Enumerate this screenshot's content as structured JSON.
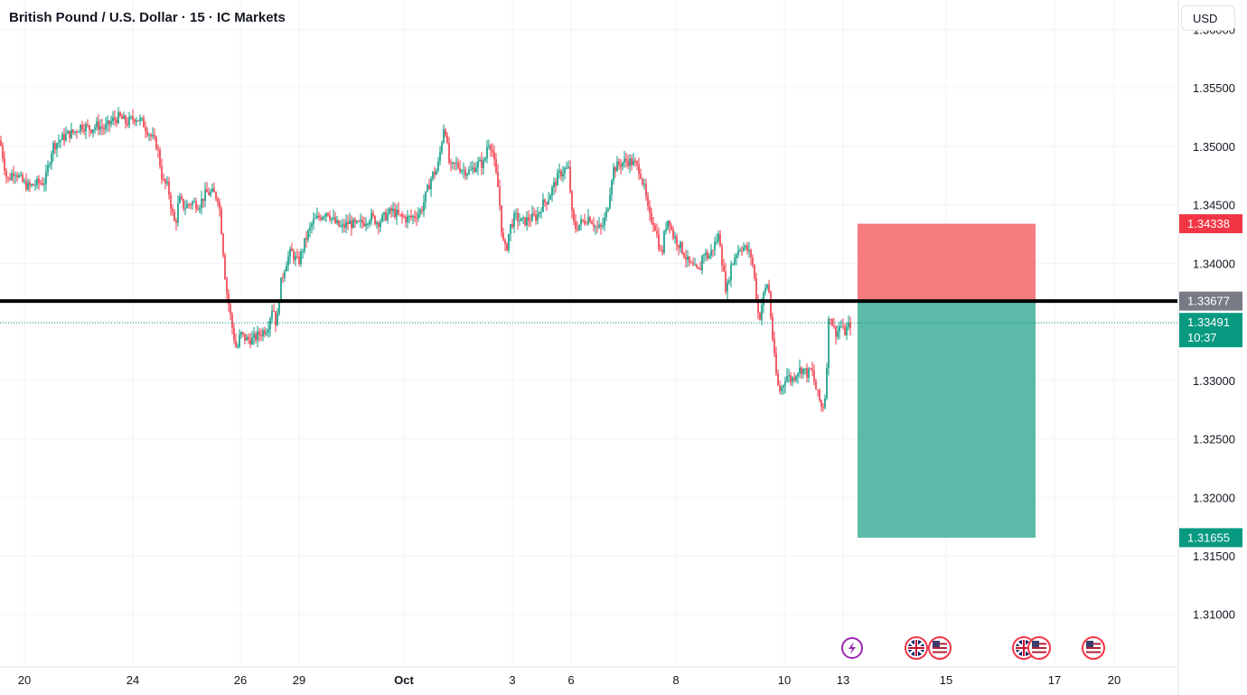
{
  "header": {
    "title": "British Pound / U.S. Dollar · 15 · IC Markets",
    "currency": "USD"
  },
  "chart_data": {
    "type": "candlestick",
    "y_ticks": [
      "1.36000",
      "1.35500",
      "1.35000",
      "1.34500",
      "1.34000",
      "1.33500",
      "1.33000",
      "1.32500",
      "1.32000",
      "1.31500",
      "1.31000"
    ],
    "y_tick_values": [
      1.36,
      1.355,
      1.35,
      1.345,
      1.34,
      1.335,
      1.33,
      1.325,
      1.32,
      1.315,
      1.31
    ],
    "ylim": [
      1.3055,
      1.3625
    ],
    "x_ticks": [
      "20",
      "24",
      "26",
      "29",
      "Oct",
      "3",
      "6",
      "8",
      "10",
      "13",
      "15",
      "17",
      "20"
    ],
    "price_path": [
      [
        0,
        1.3505
      ],
      [
        8,
        1.347
      ],
      [
        16,
        1.348
      ],
      [
        24,
        1.347
      ],
      [
        32,
        1.3465
      ],
      [
        40,
        1.3468
      ],
      [
        50,
        1.347
      ],
      [
        58,
        1.35
      ],
      [
        66,
        1.3505
      ],
      [
        74,
        1.351
      ],
      [
        82,
        1.3512
      ],
      [
        90,
        1.3518
      ],
      [
        100,
        1.3515
      ],
      [
        108,
        1.3518
      ],
      [
        116,
        1.3515
      ],
      [
        124,
        1.3522
      ],
      [
        132,
        1.3525
      ],
      [
        140,
        1.352
      ],
      [
        150,
        1.3525
      ],
      [
        158,
        1.352
      ],
      [
        166,
        1.351
      ],
      [
        174,
        1.35
      ],
      [
        180,
        1.347
      ],
      [
        186,
        1.3465
      ],
      [
        190,
        1.3445
      ],
      [
        194,
        1.3432
      ],
      [
        198,
        1.3455
      ],
      [
        204,
        1.3448
      ],
      [
        212,
        1.3452
      ],
      [
        220,
        1.345
      ],
      [
        228,
        1.346
      ],
      [
        236,
        1.346
      ],
      [
        242,
        1.3455
      ],
      [
        246,
        1.342
      ],
      [
        250,
        1.338
      ],
      [
        254,
        1.336
      ],
      [
        258,
        1.334
      ],
      [
        262,
        1.3325
      ],
      [
        266,
        1.334
      ],
      [
        272,
        1.3335
      ],
      [
        280,
        1.3335
      ],
      [
        288,
        1.334
      ],
      [
        296,
        1.3345
      ],
      [
        302,
        1.3365
      ],
      [
        306,
        1.3345
      ],
      [
        310,
        1.338
      ],
      [
        316,
        1.34
      ],
      [
        322,
        1.341
      ],
      [
        330,
        1.34
      ],
      [
        338,
        1.342
      ],
      [
        346,
        1.3435
      ],
      [
        354,
        1.344
      ],
      [
        362,
        1.3445
      ],
      [
        370,
        1.3435
      ],
      [
        378,
        1.343
      ],
      [
        386,
        1.3435
      ],
      [
        394,
        1.3432
      ],
      [
        402,
        1.3435
      ],
      [
        410,
        1.344
      ],
      [
        418,
        1.3435
      ],
      [
        426,
        1.344
      ],
      [
        434,
        1.3445
      ],
      [
        442,
        1.344
      ],
      [
        450,
        1.3438
      ],
      [
        458,
        1.344
      ],
      [
        466,
        1.3445
      ],
      [
        472,
        1.346
      ],
      [
        478,
        1.3475
      ],
      [
        484,
        1.348
      ],
      [
        488,
        1.35
      ],
      [
        492,
        1.3522
      ],
      [
        494,
        1.3505
      ],
      [
        498,
        1.348
      ],
      [
        504,
        1.3485
      ],
      [
        512,
        1.348
      ],
      [
        520,
        1.3478
      ],
      [
        528,
        1.3485
      ],
      [
        536,
        1.3485
      ],
      [
        540,
        1.3505
      ],
      [
        544,
        1.35
      ],
      [
        548,
        1.348
      ],
      [
        552,
        1.346
      ],
      [
        556,
        1.342
      ],
      [
        560,
        1.341
      ],
      [
        564,
        1.343
      ],
      [
        570,
        1.344
      ],
      [
        578,
        1.3435
      ],
      [
        586,
        1.3438
      ],
      [
        594,
        1.344
      ],
      [
        600,
        1.345
      ],
      [
        606,
        1.3455
      ],
      [
        612,
        1.3465
      ],
      [
        618,
        1.3475
      ],
      [
        624,
        1.348
      ],
      [
        630,
        1.348
      ],
      [
        632,
        1.3445
      ],
      [
        636,
        1.343
      ],
      [
        644,
        1.3435
      ],
      [
        652,
        1.344
      ],
      [
        660,
        1.343
      ],
      [
        666,
        1.343
      ],
      [
        672,
        1.3445
      ],
      [
        678,
        1.348
      ],
      [
        686,
        1.3485
      ],
      [
        694,
        1.3488
      ],
      [
        702,
        1.3485
      ],
      [
        708,
        1.348
      ],
      [
        714,
        1.346
      ],
      [
        718,
        1.344
      ],
      [
        724,
        1.3435
      ],
      [
        728,
        1.342
      ],
      [
        732,
        1.3405
      ],
      [
        736,
        1.343
      ],
      [
        740,
        1.344
      ],
      [
        744,
        1.3425
      ],
      [
        750,
        1.3418
      ],
      [
        756,
        1.341
      ],
      [
        762,
        1.34
      ],
      [
        768,
        1.3395
      ],
      [
        774,
        1.3392
      ],
      [
        778,
        1.341
      ],
      [
        784,
        1.3405
      ],
      [
        790,
        1.3415
      ],
      [
        796,
        1.3425
      ],
      [
        800,
        1.3395
      ],
      [
        804,
        1.3375
      ],
      [
        808,
        1.3395
      ],
      [
        814,
        1.3408
      ],
      [
        820,
        1.3415
      ],
      [
        826,
        1.3412
      ],
      [
        832,
        1.3405
      ],
      [
        836,
        1.338
      ],
      [
        840,
        1.335
      ],
      [
        844,
        1.337
      ],
      [
        850,
        1.3385
      ],
      [
        854,
        1.3345
      ],
      [
        858,
        1.331
      ],
      [
        862,
        1.329
      ],
      [
        866,
        1.3295
      ],
      [
        870,
        1.3305
      ],
      [
        876,
        1.33
      ],
      [
        882,
        1.3308
      ],
      [
        888,
        1.331
      ],
      [
        894,
        1.3305
      ],
      [
        898,
        1.331
      ],
      [
        902,
        1.3295
      ],
      [
        906,
        1.3285
      ],
      [
        910,
        1.3275
      ],
      [
        914,
        1.329
      ],
      [
        916,
        1.334
      ],
      [
        918,
        1.336
      ],
      [
        922,
        1.3345
      ],
      [
        926,
        1.334
      ],
      [
        930,
        1.3348
      ],
      [
        934,
        1.334
      ],
      [
        938,
        1.3345
      ],
      [
        942,
        1.3349
      ]
    ],
    "horizontal_line": {
      "price": 1.33677,
      "label": "1.33677"
    },
    "current_price": {
      "price": 1.33491,
      "label": "1.33491",
      "countdown": "10:37"
    },
    "stop_level": {
      "price": 1.34338,
      "label": "1.34338"
    },
    "target_level": {
      "price": 1.31655,
      "label": "1.31655"
    },
    "colors": {
      "up": "#089981",
      "down": "#f23645",
      "stop_zone": "#f77c80",
      "target_zone": "#5bbba8",
      "line": "#000000",
      "grid": "#f0f3fa",
      "axis_text": "#131722",
      "last_price_box": "#089981",
      "level_box": "#787b86"
    },
    "events": [
      "lightning-icon",
      "uk-flag-icon",
      "us-flag-icon",
      "uk-flag-icon",
      "us-flag-icon",
      "us-flag-icon"
    ]
  }
}
